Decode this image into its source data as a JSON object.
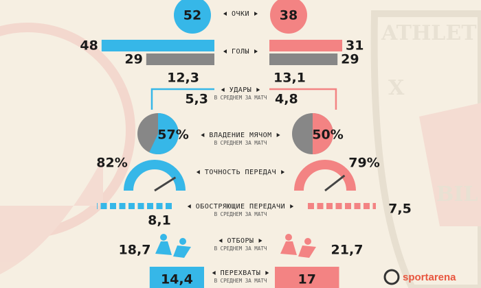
{
  "background_texts": [
    "ATHLET",
    "X",
    "BIL"
  ],
  "brand": "sportarena",
  "colors": {
    "left": "#36b7e8",
    "right": "#f38383",
    "neutral": "#878787"
  },
  "stats": {
    "points": {
      "label": "ОЧКИ",
      "left": 52,
      "right": 38
    },
    "goals": {
      "label": "ГОЛЫ",
      "left_scored": 48,
      "right_scored": 31,
      "left_conceded": 29,
      "right_conceded": 29
    },
    "shots": {
      "label": "УДАРЫ",
      "sublabel": "В СРЕДНЕМ ЗА МАТЧ",
      "left_total": {
        "value": 12.3,
        "label": "12,3"
      },
      "left_on_target": {
        "value": 5.3,
        "label": "5,3"
      },
      "right_total": {
        "value": 13.1,
        "label": "13,1"
      },
      "right_on_target": {
        "value": 4.8,
        "label": "4,8"
      }
    },
    "possession": {
      "label": "ВЛАДЕНИЕ МЯЧОМ",
      "sublabel": "В СРЕДНЕМ ЗА МАТЧ",
      "left": {
        "value": 57,
        "label": "57%"
      },
      "right": {
        "value": 50,
        "label": "50%"
      }
    },
    "pass_accuracy": {
      "label": "ТОЧНОСТЬ ПЕРЕДАЧ",
      "left": {
        "value": 82,
        "label": "82%"
      },
      "right": {
        "value": 79,
        "label": "79%"
      }
    },
    "key_passes": {
      "label": "ОБОСТРЯЮЩИЕ ПЕРЕДАЧИ",
      "sublabel": "В СРЕДНЕМ ЗА МАТЧ",
      "left": {
        "value": 8.1,
        "label": "8,1"
      },
      "right": {
        "value": 7.5,
        "label": "7,5"
      }
    },
    "tackles": {
      "label": "ОТБОРЫ",
      "sublabel": "В СРЕДНЕМ ЗА МАТЧ",
      "left": {
        "value": 18.7,
        "label": "18,7"
      },
      "right": {
        "value": 21.7,
        "label": "21,7"
      }
    },
    "interceptions": {
      "label": "ПЕРЕХВАТЫ",
      "sublabel": "В СРЕДНЕМ ЗА МАТЧ",
      "left": {
        "value": 14.4,
        "label": "14,4"
      },
      "right": 17
    }
  }
}
